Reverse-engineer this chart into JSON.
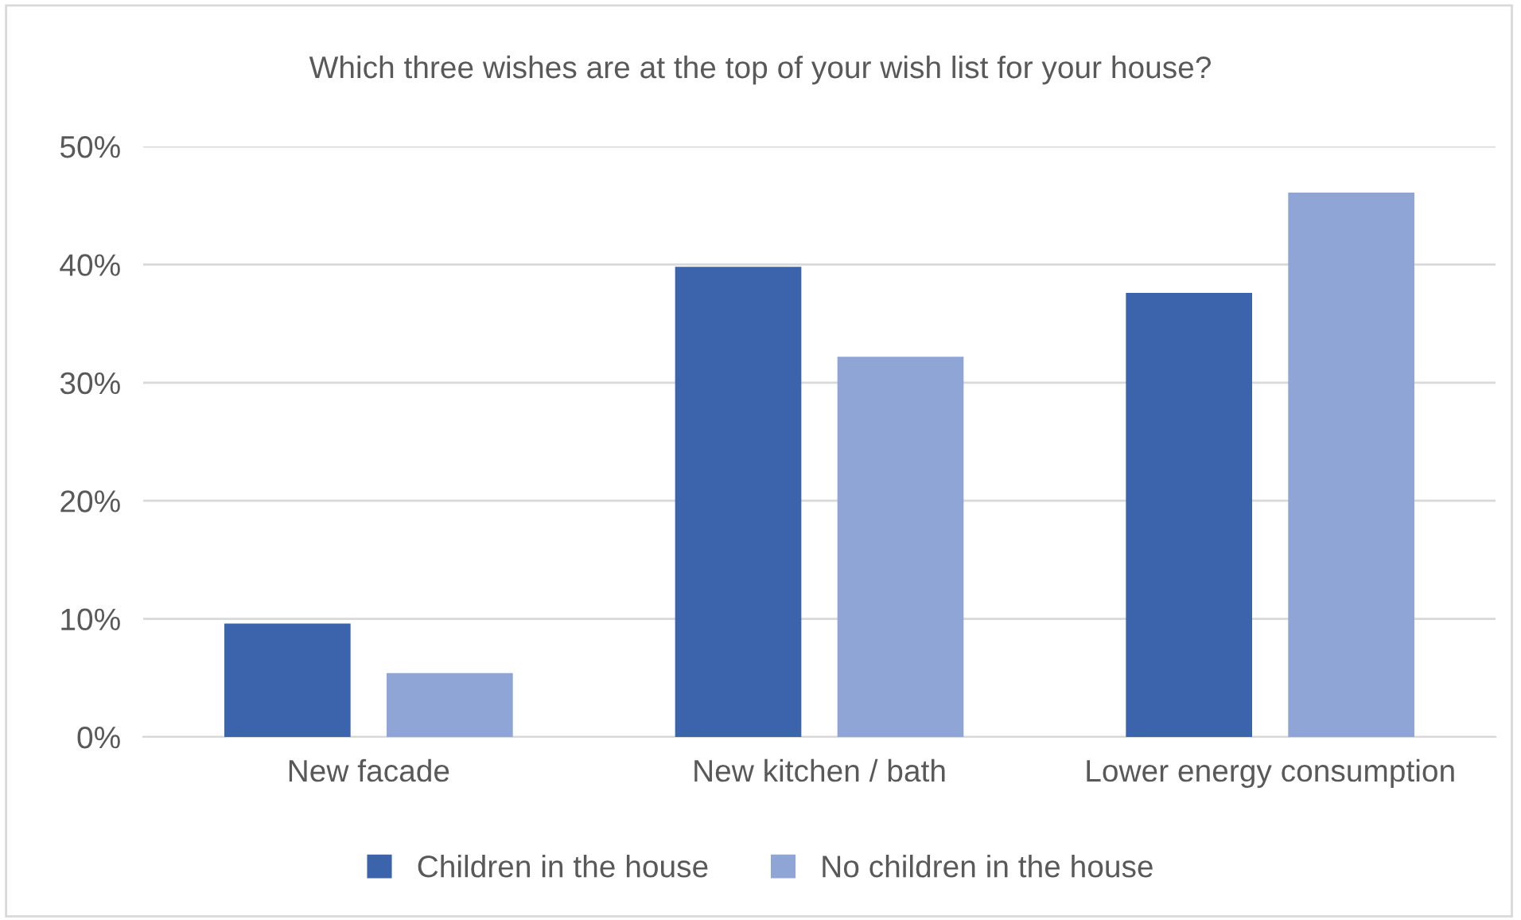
{
  "chart_data": {
    "type": "bar",
    "title": "Which three wishes are at the top of your wish list for your house?",
    "categories": [
      "New facade",
      "New kitchen / bath",
      "Lower energy consumption"
    ],
    "series": [
      {
        "name": "Children in the house",
        "color": "#3b64ad",
        "values": [
          9.6,
          39.8,
          37.6
        ]
      },
      {
        "name": "No children in the house",
        "color": "#8fa5d6",
        "values": [
          5.4,
          32.2,
          46.1
        ]
      }
    ],
    "ylim": [
      0,
      50
    ],
    "yticks": [
      {
        "value": 0,
        "label": "0%"
      },
      {
        "value": 10,
        "label": "10%"
      },
      {
        "value": 20,
        "label": "20%"
      },
      {
        "value": 30,
        "label": "30%"
      },
      {
        "value": 40,
        "label": "40%"
      },
      {
        "value": 50,
        "label": "50%"
      }
    ],
    "grid": "y",
    "legend": "bottom"
  }
}
